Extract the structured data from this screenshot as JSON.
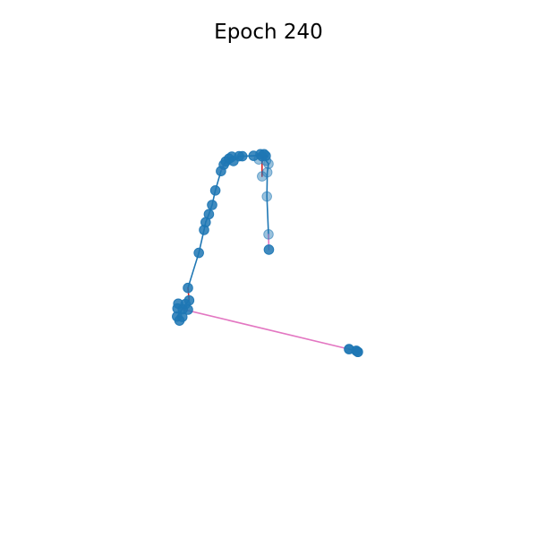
{
  "chart_data": {
    "type": "scatter",
    "title": "Epoch 240",
    "xlabel": "",
    "ylabel": "",
    "axes_visible": false,
    "grid": false,
    "xlim": [
      0,
      100
    ],
    "ylim": [
      0,
      100
    ],
    "colors": {
      "point": "#1f77b4",
      "segment_default": "#1f77b4",
      "segment_pink": "#e377c2",
      "segment_red": "#d62728"
    },
    "points": [
      {
        "x": 39.4,
        "y": 74.8,
        "alpha": 0.85
      },
      {
        "x": 40.2,
        "y": 75.5,
        "alpha": 0.85
      },
      {
        "x": 40.9,
        "y": 76.0,
        "alpha": 0.85
      },
      {
        "x": 41.3,
        "y": 74.9,
        "alpha": 0.85
      },
      {
        "x": 42.7,
        "y": 76.1,
        "alpha": 0.85
      },
      {
        "x": 43.5,
        "y": 76.1,
        "alpha": 0.85
      },
      {
        "x": 38.9,
        "y": 74.0,
        "alpha": 0.85
      },
      {
        "x": 38.2,
        "y": 72.4,
        "alpha": 0.85
      },
      {
        "x": 36.8,
        "y": 67.6,
        "alpha": 0.85
      },
      {
        "x": 36.0,
        "y": 64.0,
        "alpha": 0.85
      },
      {
        "x": 35.2,
        "y": 61.7,
        "alpha": 0.85
      },
      {
        "x": 34.4,
        "y": 59.7,
        "alpha": 0.85
      },
      {
        "x": 34.0,
        "y": 57.8,
        "alpha": 0.85
      },
      {
        "x": 32.7,
        "y": 52.1,
        "alpha": 0.85
      },
      {
        "x": 30.0,
        "y": 43.4,
        "alpha": 0.85
      },
      {
        "x": 30.3,
        "y": 40.3,
        "alpha": 0.85
      },
      {
        "x": 27.6,
        "y": 39.5,
        "alpha": 0.85
      },
      {
        "x": 29.4,
        "y": 39.4,
        "alpha": 0.85
      },
      {
        "x": 27.4,
        "y": 38.3,
        "alpha": 0.85
      },
      {
        "x": 28.7,
        "y": 38.1,
        "alpha": 0.85
      },
      {
        "x": 30.0,
        "y": 38.0,
        "alpha": 0.85
      },
      {
        "x": 27.3,
        "y": 36.3,
        "alpha": 0.85
      },
      {
        "x": 28.6,
        "y": 36.2,
        "alpha": 0.85
      },
      {
        "x": 27.9,
        "y": 35.3,
        "alpha": 0.85
      },
      {
        "x": 46.3,
        "y": 76.2,
        "alpha": 0.85
      },
      {
        "x": 48.0,
        "y": 76.6,
        "alpha": 0.85
      },
      {
        "x": 48.9,
        "y": 76.6,
        "alpha": 0.85
      },
      {
        "x": 49.3,
        "y": 76.2,
        "alpha": 0.85
      },
      {
        "x": 48.4,
        "y": 76.1,
        "alpha": 0.85
      },
      {
        "x": 47.6,
        "y": 75.3,
        "alpha": 0.45
      },
      {
        "x": 49.4,
        "y": 75.0,
        "alpha": 0.45
      },
      {
        "x": 50.0,
        "y": 74.2,
        "alpha": 0.45
      },
      {
        "x": 49.7,
        "y": 72.1,
        "alpha": 0.45
      },
      {
        "x": 48.4,
        "y": 71.1,
        "alpha": 0.45
      },
      {
        "x": 49.6,
        "y": 66.1,
        "alpha": 0.45
      },
      {
        "x": 50.0,
        "y": 56.7,
        "alpha": 0.45
      },
      {
        "x": 50.1,
        "y": 52.9,
        "alpha": 0.85
      },
      {
        "x": 70.0,
        "y": 28.2,
        "alpha": 0.95
      },
      {
        "x": 71.8,
        "y": 27.8,
        "alpha": 0.95
      },
      {
        "x": 72.2,
        "y": 27.5,
        "alpha": 0.95
      }
    ],
    "segments": [
      {
        "from": 0,
        "to": 1,
        "color": "segment_default"
      },
      {
        "from": 1,
        "to": 2,
        "color": "segment_default"
      },
      {
        "from": 2,
        "to": 3,
        "color": "segment_default"
      },
      {
        "from": 3,
        "to": 4,
        "color": "segment_default"
      },
      {
        "from": 4,
        "to": 5,
        "color": "segment_default"
      },
      {
        "from": 0,
        "to": 6,
        "color": "segment_default"
      },
      {
        "from": 6,
        "to": 7,
        "color": "segment_pink"
      },
      {
        "from": 7,
        "to": 8,
        "color": "segment_default"
      },
      {
        "from": 8,
        "to": 9,
        "color": "segment_default"
      },
      {
        "from": 9,
        "to": 10,
        "color": "segment_default"
      },
      {
        "from": 10,
        "to": 11,
        "color": "segment_default"
      },
      {
        "from": 11,
        "to": 12,
        "color": "segment_default"
      },
      {
        "from": 12,
        "to": 13,
        "color": "segment_default"
      },
      {
        "from": 13,
        "to": 14,
        "color": "segment_default"
      },
      {
        "from": 14,
        "to": 15,
        "color": "segment_red"
      },
      {
        "from": 15,
        "to": 17,
        "color": "segment_default"
      },
      {
        "from": 17,
        "to": 19,
        "color": "segment_default"
      },
      {
        "from": 19,
        "to": 21,
        "color": "segment_default"
      },
      {
        "from": 19,
        "to": 37,
        "color": "segment_pink"
      },
      {
        "from": 37,
        "to": 39,
        "color": "segment_default"
      },
      {
        "from": 5,
        "to": 24,
        "color": "segment_default"
      },
      {
        "from": 24,
        "to": 25,
        "color": "segment_default"
      },
      {
        "from": 25,
        "to": 26,
        "color": "segment_default"
      },
      {
        "from": 26,
        "to": 27,
        "color": "segment_default"
      },
      {
        "from": 27,
        "to": 28,
        "color": "segment_default"
      },
      {
        "from": 28,
        "to": 33,
        "color": "segment_red"
      },
      {
        "from": 27,
        "to": 30,
        "color": "segment_default"
      },
      {
        "from": 30,
        "to": 31,
        "color": "segment_default"
      },
      {
        "from": 31,
        "to": 32,
        "color": "segment_default"
      },
      {
        "from": 32,
        "to": 34,
        "color": "segment_default"
      },
      {
        "from": 34,
        "to": 35,
        "color": "segment_default"
      },
      {
        "from": 35,
        "to": 36,
        "color": "segment_pink"
      }
    ]
  }
}
